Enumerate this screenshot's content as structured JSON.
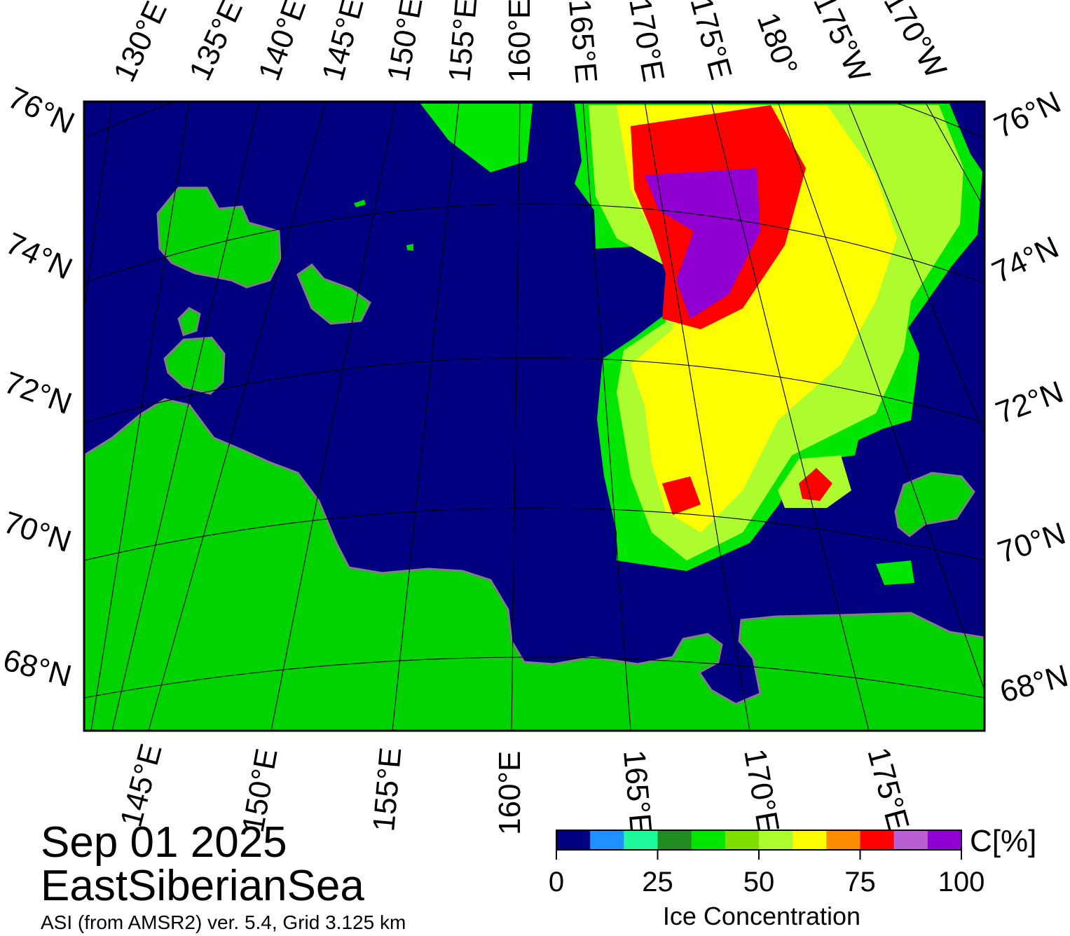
{
  "caption": {
    "date": "Sep 01 2025",
    "region": "EastSiberianSea",
    "source": "ASI (from AMSR2) ver. 5.4,  Grid 3.125 km"
  },
  "map": {
    "top_labels": [
      "130°E",
      "135°E",
      "140°E",
      "145°E",
      "150°E",
      "155°E",
      "160°E",
      "165°E",
      "170°E",
      "175°E",
      "180°",
      "175°W",
      "170°W"
    ],
    "bottom_labels": [
      "145°E",
      "150°E",
      "155°E",
      "160°E",
      "165°E",
      "170°E",
      "175°E"
    ],
    "left_labels": [
      "76°N",
      "74°N",
      "72°N",
      "70°N",
      "68°N"
    ],
    "right_labels": [
      "76°N",
      "74°N",
      "72°N",
      "70°N",
      "68°N"
    ],
    "colors": {
      "ocean": "#000080",
      "land": "#00d300",
      "coast": "#808080",
      "graticule": "#000000"
    }
  },
  "colorbar": {
    "title": "Ice Concentration",
    "unit": "C[%]",
    "ticks": [
      "0",
      "25",
      "50",
      "75",
      "100"
    ],
    "range": [
      0,
      100
    ],
    "colors": [
      "#000080",
      "#1e90ff",
      "#1efa9b",
      "#228b22",
      "#00e600",
      "#7fdf00",
      "#adfc2f",
      "#fefe00",
      "#ff8c00",
      "#ff0000",
      "#b95fd3",
      "#9000d0"
    ]
  }
}
